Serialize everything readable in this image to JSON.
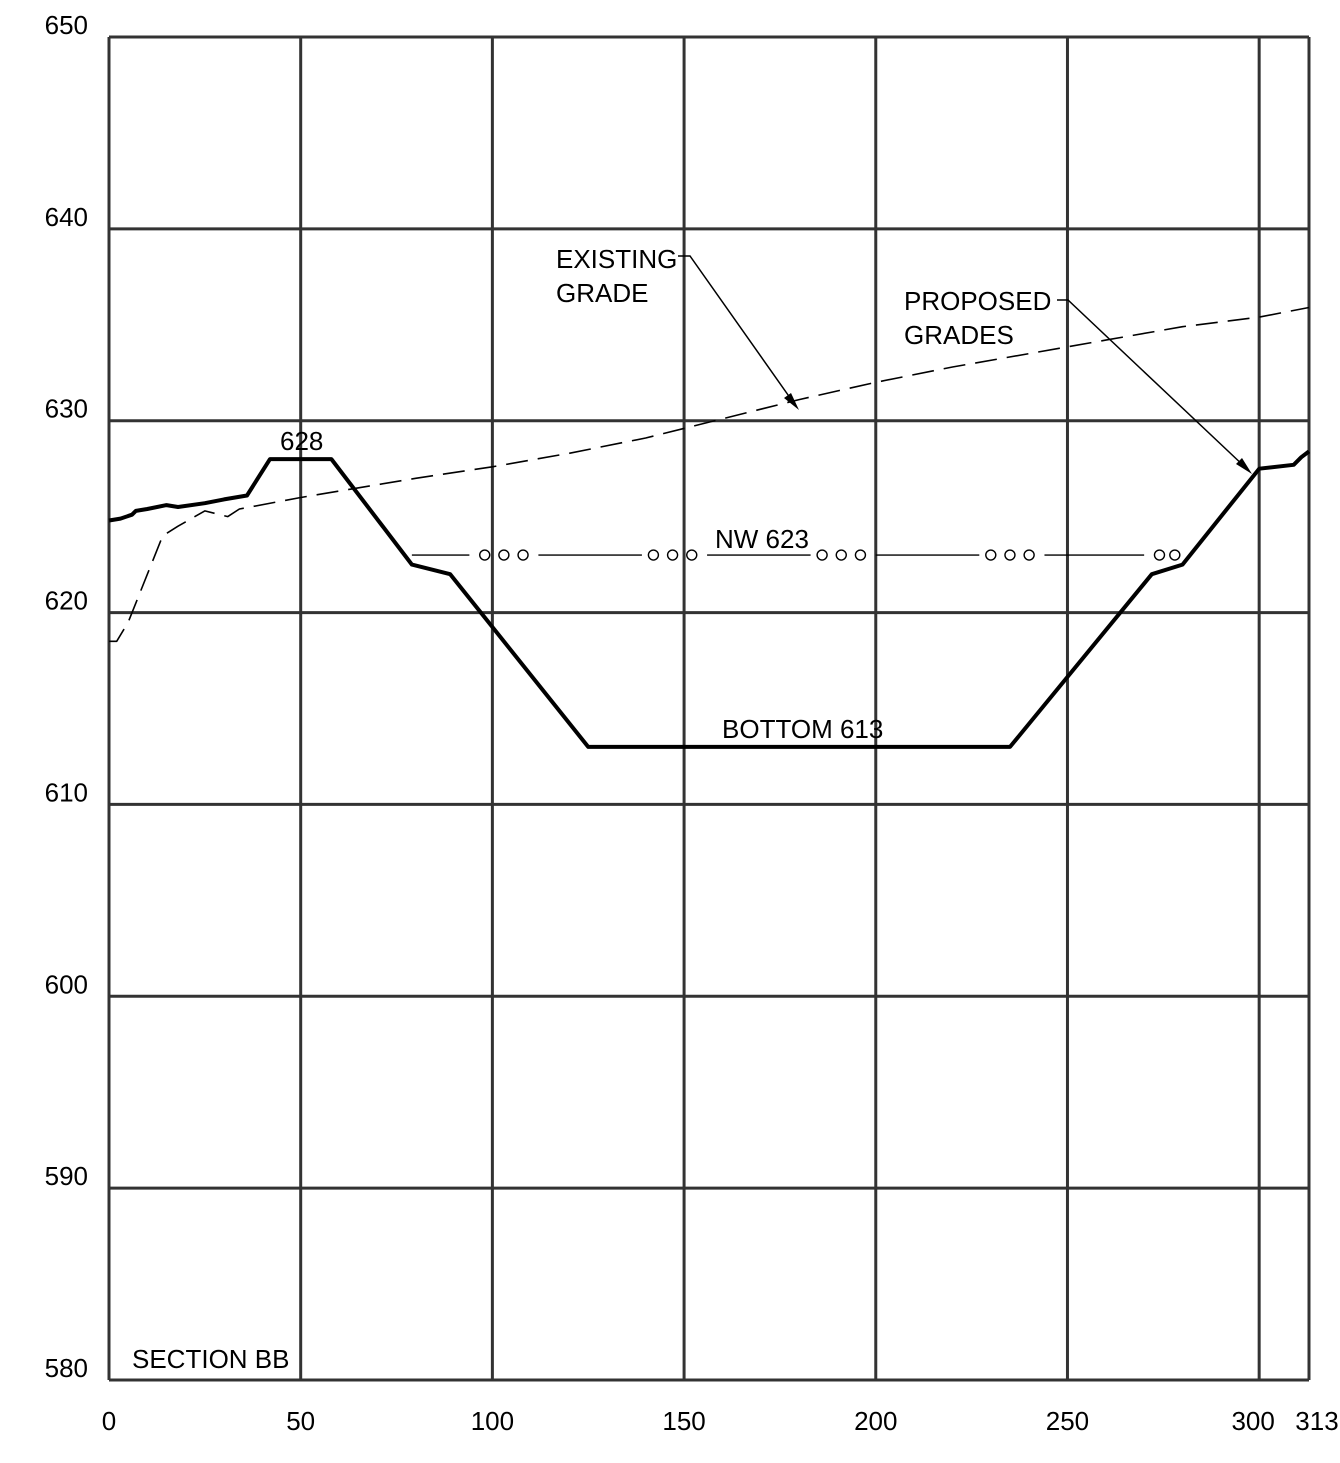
{
  "chart_data": {
    "type": "line",
    "title": "",
    "xlabel": "",
    "ylabel": "",
    "xlim": [
      0,
      313
    ],
    "ylim": [
      580,
      650
    ],
    "x_ticks": [
      0,
      50,
      100,
      150,
      200,
      250,
      300,
      313
    ],
    "y_ticks": [
      580,
      590,
      600,
      610,
      620,
      630,
      640,
      650
    ],
    "grid": true,
    "series": [
      {
        "style": "dashed",
        "points": [
          [
            0,
            618.5
          ],
          [
            2,
            618.5
          ],
          [
            5,
            619.5
          ],
          [
            14,
            624
          ],
          [
            18,
            624.5
          ],
          [
            25,
            625.3
          ],
          [
            31,
            625
          ],
          [
            34,
            625.4
          ],
          [
            50,
            626
          ],
          [
            80,
            627
          ],
          [
            100,
            627.6
          ],
          [
            120,
            628.3
          ],
          [
            140,
            629.1
          ],
          [
            160,
            630.1
          ],
          [
            180,
            631.1
          ],
          [
            200,
            632
          ],
          [
            220,
            632.8
          ],
          [
            240,
            633.5
          ],
          [
            260,
            634.2
          ],
          [
            280,
            634.9
          ],
          [
            300,
            635.4
          ],
          [
            313,
            635.9
          ]
        ]
      },
      {
        "style": "solid",
        "points": [
          [
            0,
            624.8
          ],
          [
            3,
            624.9
          ],
          [
            6,
            625.1
          ],
          [
            7,
            625.3
          ],
          [
            10,
            625.4
          ],
          [
            15,
            625.6
          ],
          [
            18,
            625.5
          ],
          [
            25,
            625.7
          ],
          [
            30,
            625.9
          ],
          [
            36,
            626.1
          ],
          [
            42,
            628
          ],
          [
            58,
            628
          ],
          [
            79,
            622.5
          ],
          [
            89,
            622
          ],
          [
            125,
            613
          ],
          [
            235,
            613
          ],
          [
            272,
            622
          ],
          [
            280,
            622.5
          ],
          [
            300,
            627.5
          ],
          [
            309,
            627.7
          ],
          [
            311,
            628.1
          ],
          [
            313,
            628.4
          ]
        ]
      }
    ],
    "water_line": {
      "y": 623,
      "x_start": 79,
      "x_end": 280
    },
    "annotations": [
      {
        "text": "628"
      },
      {
        "text": "NW 623"
      },
      {
        "text": "BOTTOM 613"
      },
      {
        "text": "EXISTING"
      },
      {
        "text": "GRADE"
      },
      {
        "text": "PROPOSED"
      },
      {
        "text": "GRADES"
      },
      {
        "text": "SECTION BB"
      }
    ]
  }
}
